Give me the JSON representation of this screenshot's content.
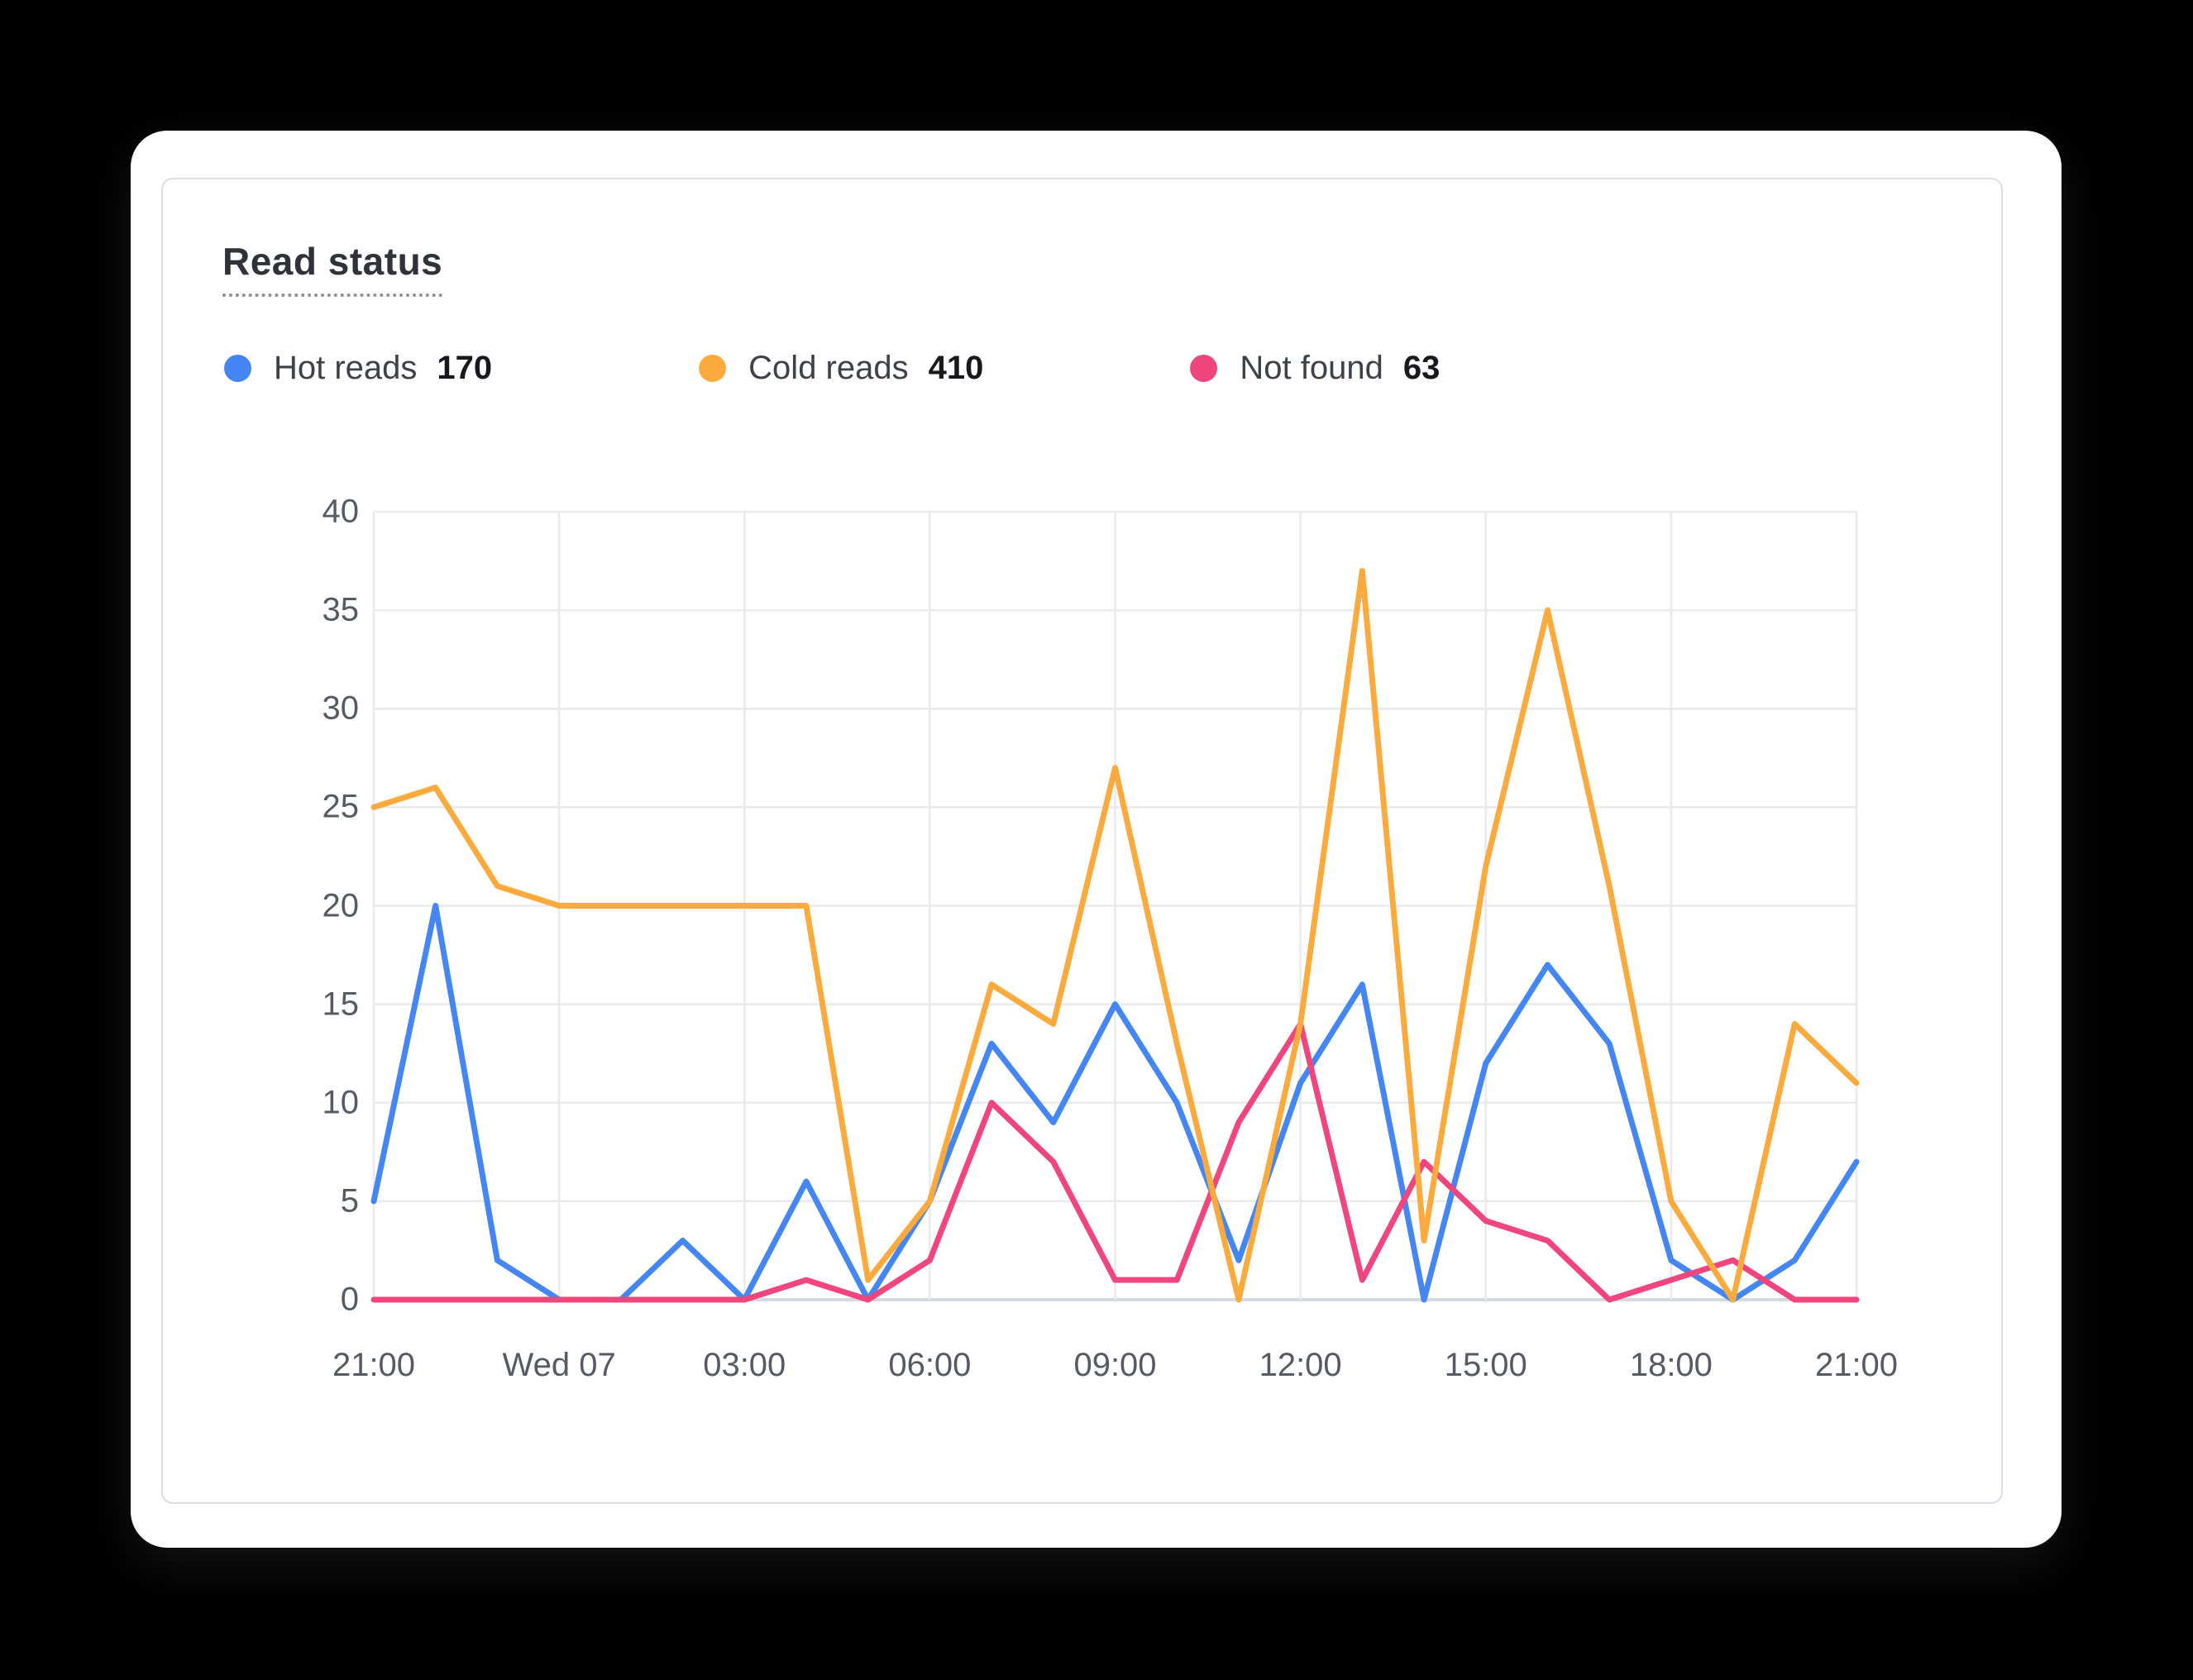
{
  "card": {
    "title": "Read status"
  },
  "legend": [
    {
      "label": "Hot reads",
      "value": "170"
    },
    {
      "label": "Cold reads",
      "value": "410"
    },
    {
      "label": "Not found",
      "value": "63"
    }
  ],
  "chart_data": {
    "type": "line",
    "title": "Read status",
    "xlabel": "",
    "ylabel": "",
    "ylim": [
      0,
      40
    ],
    "y_ticks": [
      0,
      5,
      10,
      15,
      20,
      25,
      30,
      35,
      40
    ],
    "grid": true,
    "legend_position": "top",
    "x_span_hours": 24,
    "x_points_interval_hours": 1,
    "x_tick_interval_hours": 3,
    "x_tick_labels": [
      "21:00",
      "Wed 07",
      "03:00",
      "06:00",
      "09:00",
      "12:00",
      "15:00",
      "18:00",
      "21:00"
    ],
    "series": [
      {
        "name": "Hot reads",
        "total": 170,
        "color": "#4487f4",
        "values": [
          5,
          20,
          2,
          0,
          0,
          3,
          0,
          6,
          0,
          5,
          13,
          9,
          15,
          10,
          2,
          11,
          16,
          0,
          12,
          17,
          13,
          2,
          0,
          2,
          7
        ]
      },
      {
        "name": "Cold reads",
        "total": 410,
        "color": "#fbaa3d",
        "values": [
          25,
          26,
          21,
          20,
          20,
          20,
          20,
          20,
          1,
          5,
          16,
          14,
          27,
          13,
          0,
          14,
          37,
          3,
          22,
          35,
          21,
          5,
          0,
          14,
          11
        ]
      },
      {
        "name": "Not found",
        "total": 63,
        "color": "#f1457e",
        "values": [
          0,
          0,
          0,
          0,
          0,
          0,
          0,
          1,
          0,
          2,
          10,
          7,
          1,
          1,
          9,
          14,
          1,
          7,
          4,
          3,
          0,
          1,
          2,
          0,
          0
        ]
      }
    ],
    "draw_order": [
      0,
      2,
      1
    ],
    "styles": {
      "gridline_color": "#e8eaee",
      "baseline_color": "#d5d8dd",
      "line_width": 7
    }
  }
}
